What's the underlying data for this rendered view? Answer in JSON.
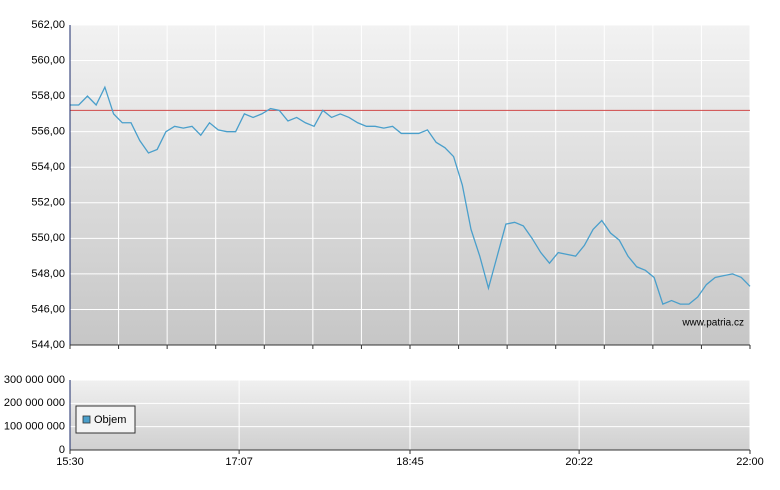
{
  "chart_data": [
    {
      "type": "line",
      "x": [
        "15:30",
        "15:35",
        "15:40",
        "15:45",
        "15:50",
        "15:55",
        "16:00",
        "16:05",
        "16:10",
        "16:15",
        "16:20",
        "16:25",
        "16:30",
        "16:35",
        "16:40",
        "16:45",
        "16:50",
        "16:55",
        "17:00",
        "17:05",
        "17:10",
        "17:15",
        "17:20",
        "17:25",
        "17:30",
        "17:35",
        "17:40",
        "17:45",
        "17:50",
        "17:55",
        "18:00",
        "18:05",
        "18:10",
        "18:15",
        "18:20",
        "18:25",
        "18:30",
        "18:35",
        "18:40",
        "18:45",
        "18:50",
        "18:55",
        "19:00",
        "19:05",
        "19:10",
        "19:15",
        "19:20",
        "19:25",
        "19:30",
        "19:35",
        "19:40",
        "19:45",
        "19:50",
        "19:55",
        "20:00",
        "20:05",
        "20:10",
        "20:15",
        "20:20",
        "20:25",
        "20:30",
        "20:35",
        "20:40",
        "20:45",
        "20:50",
        "20:55",
        "21:00",
        "21:05",
        "21:10",
        "21:15",
        "21:20",
        "21:25",
        "21:30",
        "21:35",
        "21:40",
        "21:45",
        "21:50",
        "21:55",
        "22:00"
      ],
      "values": [
        557.5,
        557.5,
        558,
        557.5,
        558.5,
        557,
        556.5,
        556.5,
        555.5,
        554.8,
        555,
        556,
        556.3,
        556.2,
        556.3,
        555.8,
        556.5,
        556.1,
        556,
        556,
        557,
        556.8,
        557,
        557.3,
        557.2,
        556.6,
        556.8,
        556.5,
        556.3,
        557.2,
        556.8,
        557,
        556.8,
        556.5,
        556.3,
        556.3,
        556.2,
        556.3,
        555.9,
        555.9,
        555.9,
        556.1,
        555.4,
        555.1,
        554.6,
        553,
        550.5,
        549,
        547.2,
        549,
        550.8,
        550.9,
        550.7,
        550,
        549.2,
        548.6,
        549.2,
        549.1,
        549,
        549.6,
        550.5,
        551,
        550.3,
        549.9,
        549,
        548.4,
        548.2,
        547.8,
        546.3,
        546.5,
        546.3,
        546.3,
        546.7,
        547.4,
        547.8,
        547.9,
        548,
        547.8,
        547.3
      ],
      "color": "#4a9fcb",
      "xlim": [
        "15:30",
        "22:00"
      ],
      "ylim": [
        544,
        562
      ],
      "yticks": [
        {
          "value": 544,
          "label": "544,00"
        },
        {
          "value": 546,
          "label": "546,00"
        },
        {
          "value": 548,
          "label": "548,00"
        },
        {
          "value": 550,
          "label": "550,00"
        },
        {
          "value": 552,
          "label": "552,00"
        },
        {
          "value": 554,
          "label": "554,00"
        },
        {
          "value": 556,
          "label": "556,00"
        },
        {
          "value": 558,
          "label": "558,00"
        },
        {
          "value": 560,
          "label": "560,00"
        },
        {
          "value": 562,
          "label": "562,00"
        }
      ],
      "reference_line": {
        "value": 557.2,
        "color": "#d04848"
      },
      "grid": true,
      "watermark": "www.patria.cz"
    },
    {
      "type": "bar",
      "series": [
        {
          "name": "Objem",
          "color": "#4a9fcb",
          "values": []
        }
      ],
      "xlim": [
        "15:30",
        "22:00"
      ],
      "xticks": [
        "15:30",
        "17:07",
        "18:45",
        "20:22",
        "22:00"
      ],
      "ylim": [
        0,
        300000000
      ],
      "yticks": [
        0,
        {
          "value": 100000000,
          "label": "100 000 000"
        },
        {
          "value": 200000000,
          "label": "200 000 000"
        },
        {
          "value": 300000000,
          "label": "300 000 000"
        }
      ],
      "grid": true,
      "legend": "bottom-left"
    }
  ]
}
